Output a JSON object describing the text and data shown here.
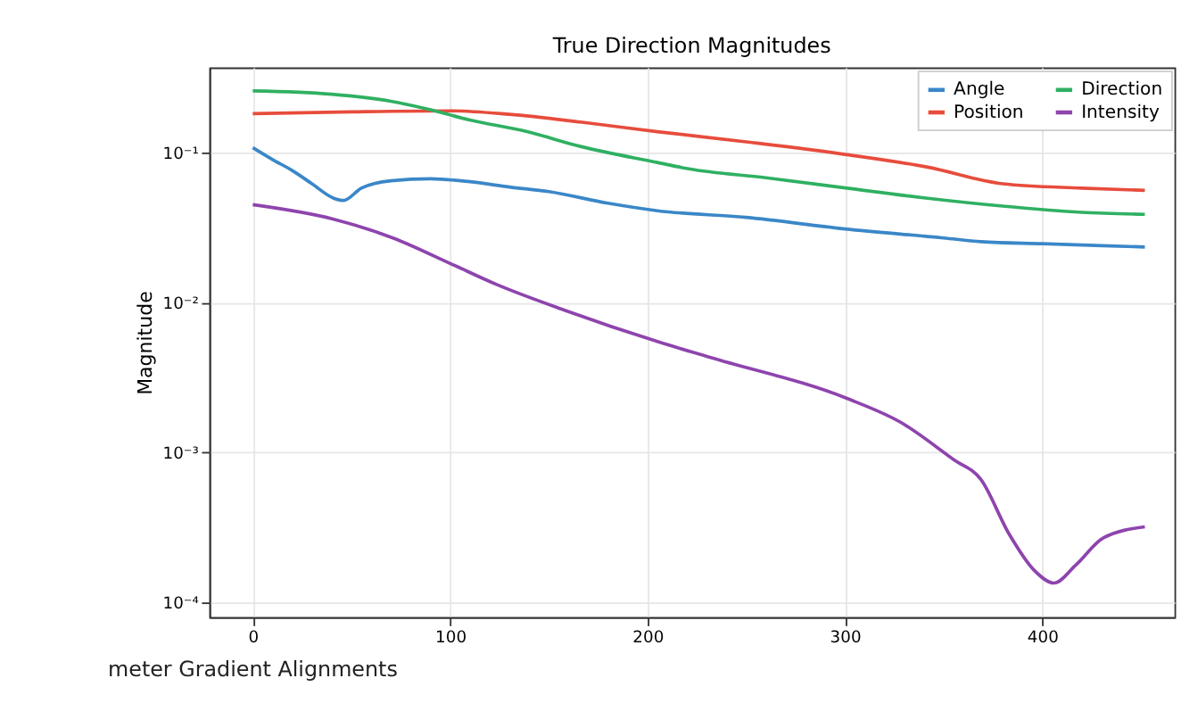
{
  "chart_data": {
    "type": "line",
    "title": "True Direction Magnitudes",
    "ylabel": "Magnitude",
    "log": true,
    "grid": true,
    "legend": "top right",
    "marker": "none",
    "line_style": "solid",
    "xlim": [
      -22,
      467
    ],
    "ylim": [
      8e-05,
      0.37
    ],
    "xticks": [
      0,
      100,
      200,
      300,
      400
    ],
    "yticks": [
      {
        "value": 0.0001,
        "label": "10⁻⁴"
      },
      {
        "value": 0.001,
        "label": "10⁻³"
      },
      {
        "value": 0.01,
        "label": "10⁻²"
      },
      {
        "value": 0.1,
        "label": "10⁻¹"
      }
    ],
    "annotations": [
      "meter Gradient Alignments"
    ],
    "series": [
      {
        "name": "Angle",
        "color": "#3a87c8",
        "x": [
          0,
          10,
          20,
          30,
          41,
          46,
          55,
          70,
          90,
          110,
          130,
          150,
          180,
          205,
          250,
          300,
          350,
          369,
          400,
          452
        ],
        "values": [
          0.108,
          0.09,
          0.076,
          0.062,
          0.0497,
          0.048,
          0.058,
          0.065,
          0.067,
          0.064,
          0.059,
          0.055,
          0.046,
          0.041,
          0.037,
          0.031,
          0.027,
          0.0255,
          0.0247,
          0.0235
        ]
      },
      {
        "name": "Position",
        "color": "#e74c3c",
        "x": [
          0,
          50,
          100,
          130,
          166,
          205,
          250,
          301,
          342,
          380,
          420,
          452
        ],
        "values": [
          0.182,
          0.187,
          0.19,
          0.18,
          0.16,
          0.138,
          0.118,
          0.097,
          0.08,
          0.062,
          0.058,
          0.056
        ]
      },
      {
        "name": "Direction",
        "color": "#2fb062",
        "x": [
          0,
          40,
          70,
          88,
          110,
          139,
          166,
          205,
          221,
          260,
          301,
          340,
          380,
          420,
          452
        ],
        "values": [
          0.258,
          0.245,
          0.22,
          0.196,
          0.165,
          0.138,
          0.11,
          0.086,
          0.078,
          0.068,
          0.058,
          0.05,
          0.044,
          0.04,
          0.0388
        ]
      },
      {
        "name": "Intensity",
        "color": "#8e44ad",
        "x": [
          0,
          41,
          71,
          101,
          123,
          158,
          205,
          232,
          301,
          328,
          355,
          369,
          383,
          396,
          406,
          417,
          431,
          452
        ],
        "values": [
          0.045,
          0.036,
          0.027,
          0.018,
          0.0133,
          0.0089,
          0.0055,
          0.0043,
          0.0023,
          0.0016,
          0.0009,
          0.00066,
          0.00029,
          0.000164,
          0.000135,
          0.000178,
          0.00027,
          0.00032
        ]
      }
    ]
  }
}
